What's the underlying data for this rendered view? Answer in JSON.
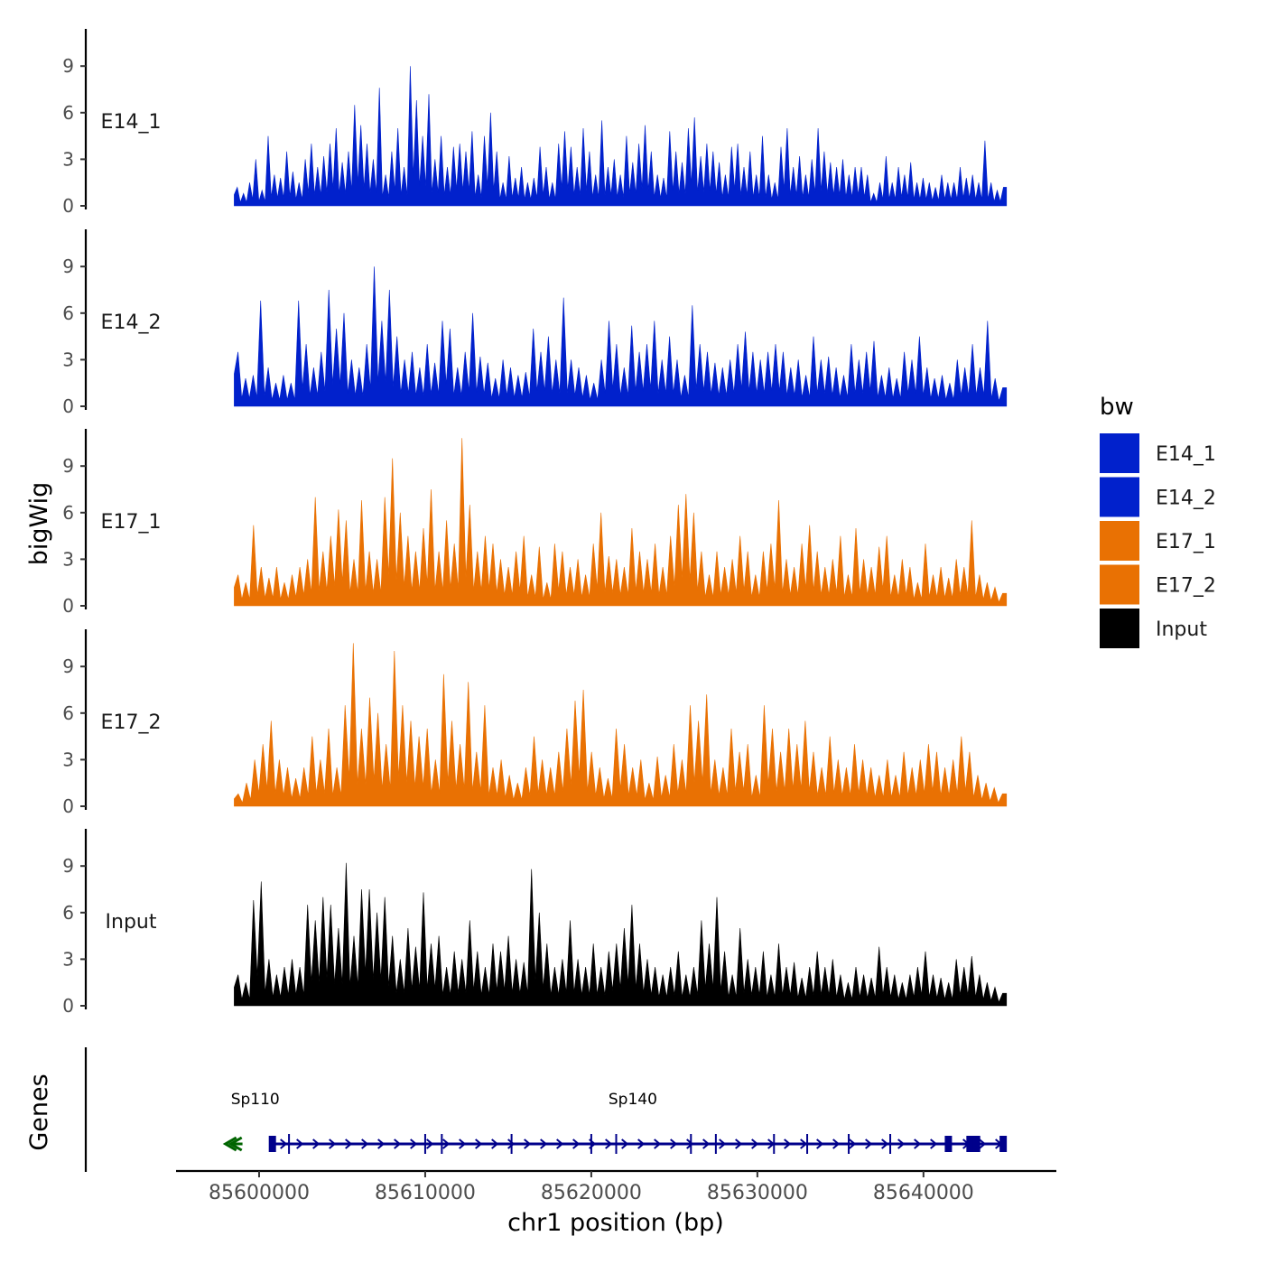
{
  "chart_data": {
    "type": "area",
    "title": "",
    "xlabel": "chr1 position (bp)",
    "ylabel": "bigWig",
    "genes_label": "Genes",
    "xlim": [
      85595000,
      85648000
    ],
    "ylim": [
      0,
      11
    ],
    "x_ticks": [
      85600000,
      85610000,
      85620000,
      85630000,
      85640000
    ],
    "x_tick_labels": [
      "85600000",
      "85610000",
      "85620000",
      "85630000",
      "85640000"
    ],
    "y_ticks": [
      0,
      3,
      6,
      9
    ],
    "y_tick_labels": [
      "0",
      "3",
      "6",
      "9"
    ],
    "signal_range": [
      85598500,
      85645000
    ],
    "legend": {
      "title": "bw",
      "position": "right",
      "entries": [
        {
          "label": "E14_1",
          "color": "#0121CC"
        },
        {
          "label": "E14_2",
          "color": "#0121CC"
        },
        {
          "label": "E17_1",
          "color": "#E97103"
        },
        {
          "label": "E17_2",
          "color": "#E97103"
        },
        {
          "label": "Input",
          "color": "#000000"
        }
      ]
    },
    "tracks": [
      {
        "name": "E14_1",
        "color": "#0121CC",
        "peak_values": [
          1.2,
          0.8,
          1.5,
          3.0,
          1.0,
          4.5,
          2.0,
          1.8,
          3.5,
          2.2,
          1.5,
          3.0,
          4.0,
          2.5,
          3.2,
          4.0,
          5.0,
          2.8,
          3.5,
          6.5,
          5.2,
          4.0,
          3.0,
          7.6,
          2.0,
          3.5,
          5.0,
          2.5,
          9.0,
          6.8,
          4.5,
          7.2,
          3.0,
          4.5,
          2.5,
          3.8,
          4.0,
          3.5,
          4.8,
          2.0,
          4.5,
          6.0,
          3.5,
          1.5,
          3.2,
          1.8,
          2.5,
          1.5,
          1.8,
          3.8,
          2.5,
          1.5,
          4.0,
          4.8,
          3.8,
          2.5,
          5.0,
          3.5,
          2.0,
          5.5,
          2.5,
          3.0,
          2.0,
          4.5,
          2.8,
          4.0,
          5.2,
          3.5,
          2.0,
          1.8,
          4.8,
          3.5,
          2.8,
          5.0,
          5.7,
          3.2,
          4.0,
          3.5,
          2.8,
          2.0,
          3.8,
          4.0,
          2.5,
          3.5,
          2.0,
          4.5,
          2.0,
          1.5,
          3.8,
          5.0,
          2.5,
          3.2,
          2.0,
          3.0,
          5.0,
          3.5,
          2.8,
          2.5,
          3.0,
          2.0,
          2.5,
          2.5,
          2.0,
          0.8,
          1.5,
          3.2,
          1.5,
          2.5,
          2.0,
          2.8,
          1.5,
          1.8,
          1.5,
          1.2,
          2.0,
          1.5,
          1.5,
          2.5,
          1.8,
          2.0,
          1.5,
          4.2,
          1.5,
          1.0,
          1.2
        ]
      },
      {
        "name": "E14_2",
        "color": "#0121CC",
        "peak_values": [
          3.5,
          1.8,
          2.0,
          6.8,
          2.5,
          1.5,
          2.0,
          1.5,
          6.8,
          4.0,
          2.5,
          3.5,
          7.5,
          5.0,
          6.0,
          3.0,
          2.5,
          4.0,
          9.0,
          5.5,
          7.5,
          4.5,
          3.0,
          3.5,
          2.5,
          4.0,
          2.8,
          5.5,
          5.0,
          2.5,
          3.5,
          6.0,
          3.2,
          2.8,
          1.8,
          3.0,
          2.5,
          2.0,
          2.2,
          5.0,
          3.5,
          4.5,
          3.0,
          7.0,
          3.0,
          2.5,
          2.0,
          1.5,
          3.0,
          5.5,
          4.0,
          2.5,
          5.2,
          3.5,
          4.0,
          5.5,
          3.0,
          4.5,
          3.0,
          2.0,
          6.5,
          4.0,
          3.5,
          2.8,
          2.5,
          3.0,
          4.0,
          4.8,
          3.5,
          3.0,
          3.5,
          4.0,
          3.5,
          2.5,
          3.0,
          2.0,
          4.5,
          3.0,
          3.2,
          2.5,
          2.0,
          4.0,
          3.0,
          3.5,
          4.2,
          2.0,
          2.5,
          1.8,
          3.5,
          3.0,
          4.5,
          2.5,
          1.8,
          2.0,
          1.5,
          3.0,
          2.5,
          4.0,
          2.5,
          5.5,
          1.8,
          1.2
        ]
      },
      {
        "name": "E17_1",
        "color": "#E97103",
        "peak_values": [
          2.0,
          1.5,
          5.2,
          2.5,
          1.8,
          2.5,
          1.5,
          2.0,
          2.5,
          3.0,
          7.0,
          3.5,
          4.5,
          6.2,
          5.5,
          3.0,
          6.8,
          3.5,
          3.0,
          7.0,
          9.5,
          6.0,
          4.5,
          3.5,
          5.0,
          7.5,
          3.5,
          5.5,
          4.0,
          10.8,
          6.5,
          3.5,
          4.5,
          4.0,
          3.0,
          2.5,
          3.5,
          4.5,
          2.0,
          3.8,
          1.5,
          4.0,
          3.5,
          2.5,
          3.0,
          2.0,
          4.0,
          6.0,
          3.2,
          3.0,
          2.5,
          5.0,
          3.5,
          3.0,
          4.0,
          2.5,
          4.5,
          6.5,
          7.2,
          6.0,
          3.5,
          2.0,
          3.5,
          2.5,
          3.0,
          4.5,
          3.5,
          2.0,
          3.5,
          4.0,
          6.8,
          3.0,
          2.5,
          4.0,
          5.2,
          3.5,
          2.5,
          3.0,
          4.5,
          2.0,
          5.0,
          3.0,
          2.5,
          3.8,
          4.5,
          2.0,
          3.0,
          2.5,
          1.5,
          4.0,
          2.0,
          2.5,
          1.8,
          3.0,
          2.5,
          5.5,
          2.0,
          1.5,
          1.2,
          0.8
        ]
      },
      {
        "name": "E17_2",
        "color": "#E97103",
        "peak_values": [
          0.8,
          1.5,
          3.0,
          4.0,
          5.5,
          3.0,
          2.5,
          1.8,
          2.5,
          4.5,
          3.0,
          5.0,
          2.5,
          6.5,
          10.5,
          5.0,
          7.0,
          6.0,
          4.0,
          10.0,
          6.5,
          5.5,
          4.5,
          5.0,
          3.0,
          8.5,
          5.5,
          4.0,
          8.0,
          3.5,
          6.5,
          2.5,
          3.0,
          2.0,
          1.5,
          2.5,
          4.5,
          3.0,
          2.5,
          3.5,
          5.0,
          6.8,
          7.5,
          3.5,
          2.5,
          1.8,
          5.0,
          4.0,
          2.5,
          3.0,
          1.5,
          3.2,
          2.0,
          4.0,
          3.0,
          6.5,
          5.5,
          7.2,
          3.0,
          2.5,
          5.0,
          3.5,
          4.0,
          2.0,
          6.5,
          5.0,
          3.5,
          5.0,
          4.0,
          5.5,
          3.5,
          2.5,
          4.5,
          3.0,
          2.5,
          4.0,
          3.0,
          2.5,
          2.0,
          3.0,
          2.0,
          3.5,
          2.5,
          3.0,
          4.0,
          3.5,
          2.5,
          3.0,
          4.5,
          3.5,
          2.0,
          1.5,
          1.2,
          0.8
        ]
      },
      {
        "name": "Input",
        "color": "#000000",
        "peak_values": [
          2.0,
          1.5,
          6.8,
          8.0,
          3.0,
          2.0,
          2.5,
          3.0,
          2.5,
          6.5,
          5.5,
          7.0,
          6.5,
          5.0,
          9.2,
          4.5,
          7.5,
          7.5,
          6.0,
          7.0,
          4.5,
          3.0,
          5.0,
          3.8,
          7.3,
          4.0,
          4.5,
          2.5,
          3.5,
          3.0,
          5.5,
          3.5,
          2.5,
          4.0,
          3.5,
          4.5,
          3.0,
          2.8,
          8.8,
          6.0,
          4.0,
          2.5,
          3.0,
          5.5,
          3.0,
          2.5,
          4.0,
          2.5,
          3.5,
          4.0,
          5.0,
          6.5,
          4.0,
          3.0,
          2.5,
          2.0,
          2.5,
          3.5,
          2.0,
          2.5,
          5.5,
          4.0,
          7.0,
          3.5,
          2.0,
          5.0,
          3.0,
          2.5,
          3.5,
          2.0,
          4.0,
          2.5,
          2.8,
          1.8,
          2.5,
          3.5,
          2.5,
          3.0,
          2.0,
          1.5,
          2.5,
          2.0,
          1.8,
          3.8,
          2.5,
          2.0,
          1.5,
          2.0,
          2.5,
          3.5,
          2.0,
          1.8,
          1.5,
          3.0,
          2.5,
          3.2,
          2.0,
          1.5,
          1.2,
          0.8
        ]
      }
    ],
    "genes": [
      {
        "name": "Sp110",
        "start": 85598300,
        "end": 85599000,
        "strand": "-",
        "color": "#006400",
        "label_x": 85598300
      },
      {
        "name": "Sp140",
        "start": 85600800,
        "end": 85645000,
        "strand": "+",
        "color": "#00008B",
        "label_x": 85622500,
        "exons": [
          85600800,
          85601800,
          85610000,
          85611000,
          85615200,
          85620000,
          85621500,
          85626000,
          85627500,
          85631000,
          85633000,
          85635500,
          85638000,
          85641500,
          85642800,
          85643200,
          85644800
        ]
      }
    ]
  }
}
